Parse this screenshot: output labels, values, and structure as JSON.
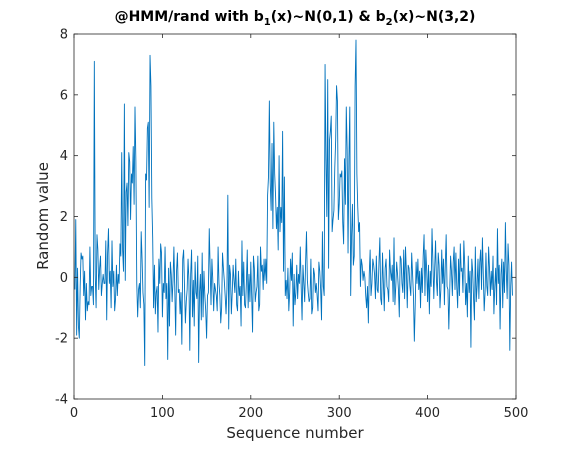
{
  "chart_data": {
    "type": "line",
    "title_parts": [
      "@HMM/rand with b",
      "1",
      "(x)~N(0,1) & b",
      "2",
      "(x)~N(3,2)"
    ],
    "xlabel": "Sequence number",
    "ylabel": "Random value",
    "xlim": [
      0,
      500
    ],
    "ylim": [
      -4,
      8
    ],
    "xticks": [
      0,
      100,
      200,
      300,
      400,
      500
    ],
    "yticks": [
      -4,
      -2,
      0,
      2,
      4,
      6,
      8
    ],
    "grid": false,
    "legend": "none",
    "color": "#0072bd",
    "series": [
      {
        "x_start": 1,
        "x_step": 1,
        "values": [
          -0.4,
          1.9,
          -1.9,
          0.3,
          -1.6,
          -2.0,
          -0.3,
          0.8,
          0.6,
          0.7,
          -0.6,
          0.2,
          -1.4,
          -0.2,
          -1.1,
          -0.8,
          -0.9,
          1.0,
          -0.6,
          -0.3,
          -0.3,
          -0.9,
          7.1,
          0.1,
          -1.0,
          1.4,
          0.9,
          -0.4,
          0.3,
          0.7,
          -0.6,
          -0.2,
          0.1,
          -0.2,
          -0.2,
          1.2,
          -1.4,
          0.8,
          1.6,
          -0.2,
          0.2,
          -1.0,
          1.2,
          -0.3,
          0.2,
          -1.1,
          -0.7,
          0.4,
          -0.6,
          0.1,
          -0.2,
          1.1,
          0.7,
          4.1,
          0.9,
          0.2,
          5.7,
          -0.1,
          2.8,
          3.1,
          1.7,
          4.1,
          3.8,
          1.9,
          3.4,
          3.1,
          4.3,
          2.4,
          5.6,
          3.8,
          -0.2,
          -1.3,
          -0.4,
          -0.2,
          -1.0,
          1.5,
          0.6,
          -0.5,
          -0.9,
          -2.9,
          3.4,
          3.2,
          4.9,
          5.1,
          2.3,
          7.3,
          6.3,
          2.6,
          1.3,
          -1.0,
          0.4,
          -1.2,
          -0.5,
          -0.3,
          -1.8,
          0.6,
          -0.2,
          1.1,
          0.8,
          -1.3,
          -0.2,
          -0.5,
          1.0,
          -0.7,
          -0.2,
          -2.7,
          0.3,
          -1.6,
          0.5,
          0.1,
          -0.8,
          -0.1,
          1.0,
          -0.4,
          -1.9,
          0.2,
          0.8,
          -0.5,
          -0.4,
          -1.2,
          -0.5,
          -2.2,
          0.6,
          0.9,
          -0.3,
          -1.5,
          -0.8,
          -0.4,
          0.6,
          -0.1,
          -2.4,
          0.1,
          0.9,
          -1.3,
          -0.1,
          -1.6,
          0.5,
          -0.5,
          -0.7,
          0.7,
          -2.8,
          -0.5,
          0.1,
          -1.4,
          0.8,
          -1.3,
          0.2,
          -0.6,
          -1.1,
          -2.0,
          -0.6,
          -0.5,
          1.6,
          0.3,
          -0.9,
          0.6,
          -0.1,
          -1.1,
          -0.2,
          -0.4,
          -0.6,
          -1.1,
          1.0,
          -0.2,
          -0.6,
          -1.5,
          -1.0,
          0.8,
          0.3,
          -0.1,
          -0.6,
          -1.2,
          -0.4,
          2.7,
          -1.7,
          0.4,
          0.1,
          -1.2,
          -0.5,
          0.4,
          -0.1,
          -0.5,
          0.6,
          -0.9,
          -1.1,
          0.2,
          -0.6,
          -0.3,
          -1.6,
          1.2,
          -0.6,
          0.5,
          -0.9,
          -1.0,
          -0.2,
          0.9,
          -1.0,
          0.1,
          -0.8,
          0.5,
          -0.6,
          -1.8,
          0.7,
          0.3,
          -0.8,
          -0.5,
          -0.3,
          0.7,
          -1.1,
          -0.9,
          1.0,
          0.2,
          0.4,
          -0.4,
          0.6,
          -0.1,
          0.6,
          -0.2,
          2.7,
          3.3,
          5.8,
          3.1,
          2.2,
          4.4,
          1.6,
          5.1,
          3.4,
          2.7,
          1.6,
          2.3,
          0.9,
          4.0,
          1.5,
          2.3,
          1.8,
          4.8,
          0.2,
          3.3,
          -0.6,
          -0.1,
          -0.7,
          0.3,
          -1.1,
          -0.5,
          0.6,
          -0.1,
          0.8,
          -1.6,
          0.1,
          -0.9,
          -0.5,
          0.4,
          -0.7,
          0.1,
          -0.2,
          1.0,
          -0.3,
          -1.4,
          0.4,
          -0.2,
          -0.8,
          0.5,
          1.5,
          -0.1,
          -0.5,
          -0.8,
          -0.7,
          0.6,
          -1.2,
          -1.0,
          0.3,
          0.1,
          -0.5,
          -0.2,
          -0.6,
          -1.1,
          0.5,
          0.2,
          -0.4,
          -1.4,
          1.5,
          -0.3,
          -0.6,
          7.0,
          3.9,
          2.0,
          6.5,
          0.3,
          4.5,
          4.8,
          5.3,
          1.5,
          1.9,
          2.2,
          3.6,
          4.5,
          6.3,
          5.8,
          1.9,
          2.4,
          3.4,
          3.3,
          3.5,
          1.8,
          1.1,
          3.9,
          2.4,
          5.6,
          4.2,
          0.8,
          3.9,
          5.6,
          -0.6,
          1.4,
          2.4,
          0.4,
          0.7,
          6.3,
          7.8,
          3.4,
          2.3,
          1.5,
          1.8,
          -0.3,
          0.6,
          0.4,
          -0.1,
          0.2,
          0.0,
          -0.6,
          -1.0,
          -0.3,
          -1.5,
          0.1,
          0.9,
          -0.6,
          -0.2,
          0.6,
          0.4,
          0.1,
          -0.7,
          0.7,
          -0.4,
          -0.5,
          0.5,
          1.3,
          -0.7,
          -0.9,
          0.8,
          -0.2,
          -1.1,
          0.3,
          0.6,
          -0.3,
          -0.4,
          -0.8,
          0.9,
          0.2,
          -0.1,
          0.4,
          -0.8,
          1.3,
          -0.9,
          -0.3,
          0.5,
          0.1,
          -0.4,
          -1.3,
          0.7,
          0.6,
          -0.2,
          -0.5,
          0.9,
          -0.7,
          1.0,
          0.2,
          -1.0,
          0.4,
          0.3,
          -0.3,
          -0.6,
          0.8,
          0.1,
          -0.6,
          -2.1,
          -0.9,
          0.5,
          -0.2,
          0.6,
          -0.4,
          0.2,
          -1.0,
          0.3,
          -0.5,
          0.7,
          1.4,
          -0.6,
          0.9,
          0.2,
          -0.8,
          0.4,
          -1.2,
          0.2,
          -0.3,
          1.6,
          0.5,
          -0.7,
          0.3,
          1.2,
          -0.1,
          -0.6,
          0.8,
          0.4,
          -1.0,
          -0.4,
          0.9,
          -0.2,
          0.6,
          -0.9,
          0.4,
          1.4,
          -0.3,
          -0.4,
          -1.7,
          -0.5,
          0.7,
          0.2,
          -0.6,
          0.5,
          1.0,
          -0.4,
          0.8,
          -0.3,
          -1.0,
          0.6,
          -0.6,
          1.1,
          0.2,
          0.3,
          -0.5,
          1.2,
          0.4,
          -0.9,
          -0.2,
          -1.3,
          0.7,
          -0.5,
          0.2,
          -2.3,
          0.6,
          0.2,
          -0.7,
          -1.4,
          1.0,
          -0.8,
          -0.3,
          0.6,
          -0.7,
          0.5,
          0.9,
          -0.4,
          1.3,
          0.1,
          -1.1,
          -0.5,
          0.8,
          -0.3,
          -0.6,
          1.0,
          0.3,
          -0.6,
          0.2,
          -0.4,
          0.7,
          -1.2,
          -0.3,
          0.3,
          -0.9,
          1.6,
          -0.2,
          0.4,
          -1.7,
          0.1,
          0.6,
          -1.0,
          0.5,
          -0.5,
          1.8,
          0.2,
          -0.7,
          1.1,
          0.4,
          -2.4,
          -0.3,
          0.5,
          -0.6
        ]
      }
    ]
  }
}
